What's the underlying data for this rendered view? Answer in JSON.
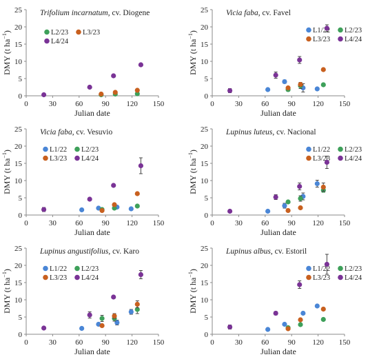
{
  "colors": {
    "L1/22": "#4a86d6",
    "L2/23": "#3ea05a",
    "L3/23": "#c8601f",
    "L4/24": "#7a3396",
    "axis": "#8a8a8a",
    "text": "#222222"
  },
  "chart_data": [
    {
      "type": "scatter",
      "title_species": "Trifolium incarnatum",
      "title_cultivar": ", cv. Diogene",
      "xlabel": "Julian date",
      "ylabel": "DMY (t ha",
      "ylabel_sup": "−1",
      "ylabel_close": ")",
      "xlim": [
        0,
        150
      ],
      "ylim": [
        0,
        25
      ],
      "xticks": [
        0,
        30,
        60,
        90,
        120,
        150
      ],
      "yticks": [
        0,
        5,
        10,
        15,
        20,
        25
      ],
      "legend": [
        "L2/23",
        "L3/23",
        "L4/24"
      ],
      "series": [
        {
          "name": "L2/23",
          "points": [
            [
              85,
              0.3,
              0
            ],
            [
              101,
              0.5,
              0
            ],
            [
              126,
              0.6,
              0
            ]
          ]
        },
        {
          "name": "L3/23",
          "points": [
            [
              85,
              0.5,
              0
            ],
            [
              101,
              1.0,
              0
            ],
            [
              126,
              1.6,
              0
            ]
          ]
        },
        {
          "name": "L4/24",
          "points": [
            [
              20,
              0.3,
              0
            ],
            [
              72,
              2.5,
              0
            ],
            [
              99,
              5.8,
              0
            ],
            [
              130,
              9.0,
              0
            ]
          ]
        }
      ]
    },
    {
      "type": "scatter",
      "title_species": "Vicia faba",
      "title_cultivar": ", cv. Favel",
      "xlabel": "Julian date",
      "ylabel": "DMY (t ha",
      "ylabel_sup": "−1",
      "ylabel_close": ")",
      "xlim": [
        0,
        150
      ],
      "ylim": [
        0,
        25
      ],
      "xticks": [
        0,
        30,
        60,
        90,
        120,
        150
      ],
      "yticks": [
        0,
        5,
        10,
        15,
        20,
        25
      ],
      "legend": [
        "L1/22",
        "L2/23",
        "L3/23",
        "L4/24"
      ],
      "series": [
        {
          "name": "L1/22",
          "points": [
            [
              63,
              1.8,
              0
            ],
            [
              82,
              4.1,
              0.5
            ],
            [
              103,
              2.3,
              1.2
            ],
            [
              119,
              2.0,
              0
            ]
          ]
        },
        {
          "name": "L2/23",
          "points": [
            [
              86,
              1.8,
              0.5
            ],
            [
              100,
              2.9,
              0.8
            ],
            [
              126,
              3.2,
              0
            ]
          ]
        },
        {
          "name": "L3/23",
          "points": [
            [
              86,
              2.3,
              0
            ],
            [
              100,
              3.3,
              0.6
            ],
            [
              126,
              7.6,
              0
            ]
          ]
        },
        {
          "name": "L4/24",
          "points": [
            [
              20,
              1.5,
              0.6
            ],
            [
              72,
              6.0,
              0.9
            ],
            [
              99,
              10.4,
              1.0
            ],
            [
              130,
              19.6,
              1.0
            ]
          ]
        }
      ]
    },
    {
      "type": "scatter",
      "title_species": "Vicia faba",
      "title_cultivar": ", cv. Vesuvio",
      "xlabel": "Julian date",
      "ylabel": "DMY (t ha",
      "ylabel_sup": "−1",
      "ylabel_close": ")",
      "xlim": [
        0,
        150
      ],
      "ylim": [
        0,
        25
      ],
      "xticks": [
        0,
        30,
        60,
        90,
        120,
        150
      ],
      "yticks": [
        0,
        5,
        10,
        15,
        20,
        25
      ],
      "legend": [
        "L1/22",
        "L2/23",
        "L3/23",
        "L4/24"
      ],
      "series": [
        {
          "name": "L1/22",
          "points": [
            [
              63,
              1.5,
              0
            ],
            [
              82,
              2.0,
              0
            ],
            [
              103,
              2.3,
              0
            ],
            [
              119,
              1.8,
              0
            ]
          ]
        },
        {
          "name": "L2/23",
          "points": [
            [
              86,
              1.6,
              0
            ],
            [
              100,
              2.0,
              0
            ],
            [
              126,
              2.6,
              0
            ]
          ]
        },
        {
          "name": "L3/23",
          "points": [
            [
              86,
              1.3,
              0
            ],
            [
              100,
              3.0,
              0
            ],
            [
              126,
              6.2,
              0
            ]
          ]
        },
        {
          "name": "L4/24",
          "points": [
            [
              20,
              1.6,
              0.6
            ],
            [
              72,
              4.6,
              0
            ],
            [
              99,
              8.6,
              0
            ],
            [
              130,
              14.3,
              2.3
            ]
          ]
        }
      ]
    },
    {
      "type": "scatter",
      "title_species": "Lupinus luteus",
      "title_cultivar": ", cv. Nacional",
      "xlabel": "Julian date",
      "ylabel": "DMY (t ha",
      "ylabel_sup": "−1",
      "ylabel_close": ")",
      "xlim": [
        0,
        150
      ],
      "ylim": [
        0,
        25
      ],
      "xticks": [
        0,
        30,
        60,
        90,
        120,
        150
      ],
      "yticks": [
        0,
        5,
        10,
        15,
        20,
        25
      ],
      "legend": [
        "L1/22",
        "L2/23",
        "L3/23",
        "L4/24"
      ],
      "series": [
        {
          "name": "L1/22",
          "points": [
            [
              63,
              1.1,
              0
            ],
            [
              82,
              2.7,
              0.7
            ],
            [
              103,
              5.4,
              1.0
            ],
            [
              119,
              9.1,
              1.0
            ]
          ]
        },
        {
          "name": "L2/23",
          "points": [
            [
              86,
              3.8,
              0
            ],
            [
              100,
              4.8,
              0.8
            ],
            [
              126,
              7.2,
              0.6
            ]
          ]
        },
        {
          "name": "L3/23",
          "points": [
            [
              86,
              1.3,
              0
            ],
            [
              100,
              2.1,
              0
            ],
            [
              126,
              8.1,
              1.2
            ]
          ]
        },
        {
          "name": "L4/24",
          "points": [
            [
              20,
              1.1,
              0
            ],
            [
              72,
              5.2,
              0.7
            ],
            [
              99,
              8.3,
              1.0
            ],
            [
              130,
              15.3,
              1.8
            ]
          ]
        }
      ]
    },
    {
      "type": "scatter",
      "title_species": "Lupinus angustifolius",
      "title_cultivar": ", cv. Karo",
      "xlabel": "Julian date",
      "ylabel": "DMY (t ha",
      "ylabel_sup": "−1",
      "ylabel_close": ")",
      "xlim": [
        0,
        150
      ],
      "ylim": [
        0,
        25
      ],
      "xticks": [
        0,
        30,
        60,
        90,
        120,
        150
      ],
      "yticks": [
        0,
        5,
        10,
        15,
        20,
        25
      ],
      "legend": [
        "L1/22",
        "L2/23",
        "L3/23",
        "L4/24"
      ],
      "series": [
        {
          "name": "L1/22",
          "points": [
            [
              63,
              1.7,
              0
            ],
            [
              82,
              2.9,
              0
            ],
            [
              103,
              3.4,
              0.7
            ],
            [
              119,
              6.5,
              0.7
            ]
          ]
        },
        {
          "name": "L2/23",
          "points": [
            [
              86,
              4.6,
              0.9
            ],
            [
              100,
              4.6,
              0.8
            ],
            [
              126,
              7.2,
              1.2
            ]
          ]
        },
        {
          "name": "L3/23",
          "points": [
            [
              86,
              2.5,
              0
            ],
            [
              100,
              5.3,
              0.7
            ],
            [
              126,
              8.7,
              1.0
            ]
          ]
        },
        {
          "name": "L4/24",
          "points": [
            [
              20,
              1.8,
              0
            ],
            [
              72,
              5.6,
              0.9
            ],
            [
              99,
              10.8,
              0
            ],
            [
              130,
              17.3,
              1.2
            ]
          ]
        }
      ]
    },
    {
      "type": "scatter",
      "title_species": "Lupinus albus",
      "title_cultivar": ", cv. Estoril",
      "xlabel": "Julian date",
      "ylabel": "DMY (t ha",
      "ylabel_sup": "−1",
      "ylabel_close": ")",
      "xlim": [
        0,
        150
      ],
      "ylim": [
        0,
        25
      ],
      "xticks": [
        0,
        30,
        60,
        90,
        120,
        150
      ],
      "yticks": [
        0,
        5,
        10,
        15,
        20,
        25
      ],
      "legend": [
        "L1/22",
        "L2/23",
        "L3/23",
        "L4/24"
      ],
      "series": [
        {
          "name": "L1/22",
          "points": [
            [
              63,
              1.4,
              0
            ],
            [
              82,
              2.9,
              0
            ],
            [
              103,
              6.1,
              0
            ],
            [
              119,
              8.2,
              0
            ]
          ]
        },
        {
          "name": "L2/23",
          "points": [
            [
              86,
              1.9,
              0
            ],
            [
              100,
              2.8,
              0
            ],
            [
              126,
              4.3,
              0
            ]
          ]
        },
        {
          "name": "L3/23",
          "points": [
            [
              86,
              1.6,
              0
            ],
            [
              100,
              4.2,
              0
            ],
            [
              126,
              7.3,
              0
            ]
          ]
        },
        {
          "name": "L4/24",
          "points": [
            [
              20,
              2.1,
              0.6
            ],
            [
              72,
              6.1,
              0.5
            ],
            [
              99,
              14.4,
              1.1
            ],
            [
              130,
              20.3,
              2.9
            ]
          ]
        }
      ]
    }
  ]
}
